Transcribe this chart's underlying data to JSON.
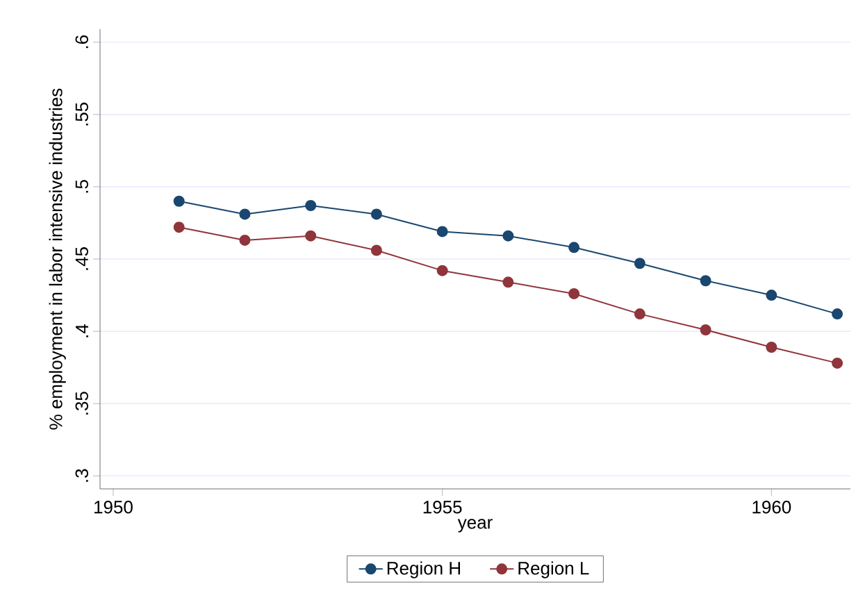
{
  "chart_data": {
    "type": "line",
    "xlabel": "year",
    "ylabel": "% employment in labor intensive industries",
    "x": [
      1951,
      1952,
      1953,
      1954,
      1955,
      1956,
      1957,
      1958,
      1959,
      1960,
      1961
    ],
    "series": [
      {
        "name": "Region H",
        "color": "#1a476f",
        "values": [
          0.49,
          0.481,
          0.487,
          0.481,
          0.469,
          0.466,
          0.458,
          0.447,
          0.435,
          0.425,
          0.412
        ]
      },
      {
        "name": "Region L",
        "color": "#90353b",
        "values": [
          0.472,
          0.463,
          0.466,
          0.456,
          0.442,
          0.434,
          0.426,
          0.412,
          0.401,
          0.389,
          0.378
        ]
      }
    ],
    "xlim": [
      1949.8,
      1961.2
    ],
    "ylim": [
      0.291,
      0.609
    ],
    "xticks": [
      1950,
      1955,
      1960
    ],
    "yticks": [
      {
        "value": 0.3,
        "label": ".3"
      },
      {
        "value": 0.35,
        "label": ".35"
      },
      {
        "value": 0.4,
        "label": ".4"
      },
      {
        "value": 0.45,
        "label": ".45"
      },
      {
        "value": 0.5,
        "label": ".5"
      },
      {
        "value": 0.55,
        "label": ".55"
      },
      {
        "value": 0.6,
        "label": ".6"
      }
    ],
    "grid": "y",
    "legend": "bottom",
    "marker": "circle",
    "line_style": "solid"
  }
}
